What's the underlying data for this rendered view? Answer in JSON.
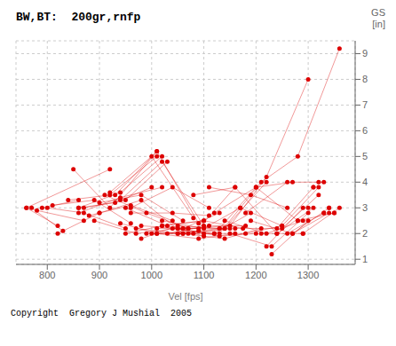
{
  "chart_data": {
    "type": "line",
    "title": "BW,BT:  200gr,rnfp",
    "xlabel": "Vel [fps]",
    "ylabel": "GS\n[in]",
    "annotations": [
      "Copyright  Gregory J Mushial  2005"
    ],
    "xlim": [
      740,
      1390
    ],
    "ylim": [
      0.8,
      9.5
    ],
    "xticks": [
      800,
      900,
      1000,
      1100,
      1200,
      1300
    ],
    "yticks": [
      1,
      2,
      3,
      4,
      5,
      6,
      7,
      8,
      9
    ],
    "grid": true,
    "color": "#dd0000",
    "series": [
      {
        "x": [
          760,
          820
        ],
        "values": [
          3.0,
          2.3
        ]
      },
      {
        "x": [
          760,
          920
        ],
        "values": [
          3.0,
          4.5
        ]
      },
      {
        "x": [
          770,
          830
        ],
        "values": [
          3.0,
          2.1
        ]
      },
      {
        "x": [
          780,
          870
        ],
        "values": [
          2.9,
          2.5
        ]
      },
      {
        "x": [
          790,
          860
        ],
        "values": [
          3.0,
          3.3
        ]
      },
      {
        "x": [
          800,
          870,
          950
        ],
        "values": [
          3.0,
          2.8,
          2.2
        ]
      },
      {
        "x": [
          810,
          890,
          960
        ],
        "values": [
          3.1,
          3.3,
          2.4
        ]
      },
      {
        "x": [
          820,
          900
        ],
        "values": [
          2.0,
          2.8
        ]
      },
      {
        "x": [
          840,
          920,
          1010
        ],
        "values": [
          3.3,
          3.5,
          5.0
        ]
      },
      {
        "x": [
          850,
          920,
          1010
        ],
        "values": [
          4.5,
          3.0,
          5.2
        ]
      },
      {
        "x": [
          860,
          940,
          1020
        ],
        "values": [
          2.8,
          3.4,
          3.8
        ]
      },
      {
        "x": [
          860,
          930,
          1000
        ],
        "values": [
          3.0,
          3.2,
          3.8
        ]
      },
      {
        "x": [
          860,
          940,
          1020
        ],
        "values": [
          3.0,
          3.6,
          5.0
        ]
      },
      {
        "x": [
          870,
          950,
          1030
        ],
        "values": [
          3.0,
          3.3,
          4.8
        ]
      },
      {
        "x": [
          880,
          960,
          1040
        ],
        "values": [
          2.7,
          3.1,
          2.5
        ]
      },
      {
        "x": [
          890,
          970,
          1050
        ],
        "values": [
          2.5,
          2.0,
          2.2
        ]
      },
      {
        "x": [
          900,
          980,
          1060
        ],
        "values": [
          3.2,
          3.5,
          2.5
        ]
      },
      {
        "x": [
          900,
          980,
          1060
        ],
        "values": [
          2.8,
          3.3,
          2.0
        ]
      },
      {
        "x": [
          910,
          990,
          1070
        ],
        "values": [
          3.5,
          2.8,
          2.2
        ]
      },
      {
        "x": [
          920,
          1000,
          1080
        ],
        "values": [
          3.6,
          5.0,
          2.6
        ]
      },
      {
        "x": [
          930,
          1010,
          1090
        ],
        "values": [
          3.5,
          5.2,
          2.4
        ]
      },
      {
        "x": [
          940,
          1020,
          1100
        ],
        "values": [
          3.3,
          4.8,
          2.3
        ]
      },
      {
        "x": [
          940,
          1010,
          1090
        ],
        "values": [
          2.4,
          2.0,
          2.1
        ]
      },
      {
        "x": [
          950,
          1030,
          1100
        ],
        "values": [
          3.0,
          2.3,
          1.9
        ]
      },
      {
        "x": [
          950,
          1020,
          1100
        ],
        "values": [
          2.0,
          2.3,
          2.5
        ]
      },
      {
        "x": [
          960,
          1040,
          1110
        ],
        "values": [
          2.8,
          2.8,
          2.7
        ]
      },
      {
        "x": [
          960,
          1040,
          1110
        ],
        "values": [
          3.0,
          3.8,
          3.0
        ]
      },
      {
        "x": [
          970,
          1050,
          1120
        ],
        "values": [
          2.2,
          2.0,
          2.0
        ]
      },
      {
        "x": [
          980,
          1050,
          1130
        ],
        "values": [
          1.8,
          2.3,
          2.2
        ]
      },
      {
        "x": [
          980,
          1060,
          1130
        ],
        "values": [
          2.3,
          2.2,
          2.8
        ]
      },
      {
        "x": [
          990,
          1070,
          1140
        ],
        "values": [
          2.0,
          2.0,
          2.2
        ]
      },
      {
        "x": [
          1000,
          1080,
          1150
        ],
        "values": [
          2.0,
          2.0,
          2.2
        ]
      },
      {
        "x": [
          1010,
          1090,
          1160
        ],
        "values": [
          2.2,
          2.2,
          3.8
        ]
      },
      {
        "x": [
          1010,
          1090,
          1160
        ],
        "values": [
          2.0,
          1.8,
          2.0
        ]
      },
      {
        "x": [
          1020,
          1100,
          1170
        ],
        "values": [
          2.5,
          2.2,
          3.0
        ]
      },
      {
        "x": [
          1020,
          1100,
          1175
        ],
        "values": [
          2.3,
          2.5,
          2.2
        ]
      },
      {
        "x": [
          1030,
          1110,
          1180
        ],
        "values": [
          2.0,
          2.3,
          2.3
        ]
      },
      {
        "x": [
          1040,
          1120,
          1190
        ],
        "values": [
          2.2,
          2.0,
          2.8
        ]
      },
      {
        "x": [
          1050,
          1130,
          1200
        ],
        "values": [
          2.0,
          2.2,
          3.8
        ]
      },
      {
        "x": [
          1050,
          1130,
          1200
        ],
        "values": [
          2.2,
          1.9,
          2.0
        ]
      },
      {
        "x": [
          1060,
          1140,
          1210
        ],
        "values": [
          2.0,
          1.8,
          2.2
        ]
      },
      {
        "x": [
          1060,
          1140,
          1220
        ],
        "values": [
          2.2,
          2.2,
          4.0
        ]
      },
      {
        "x": [
          1070,
          1150,
          1220,
          1300
        ],
        "values": [
          2.2,
          2.3,
          4.2,
          8.0
        ]
      },
      {
        "x": [
          1080,
          1160,
          1240
        ],
        "values": [
          3.5,
          3.8,
          2.0
        ]
      },
      {
        "x": [
          1100,
          1180,
          1250
        ],
        "values": [
          2.0,
          2.0,
          2.3
        ]
      },
      {
        "x": [
          1110,
          1190,
          1260
        ],
        "values": [
          3.8,
          3.5,
          3.0
        ]
      },
      {
        "x": [
          1120,
          1200,
          1270
        ],
        "values": [
          2.8,
          3.8,
          4.0
        ]
      },
      {
        "x": [
          1130,
          1210,
          1280,
          1360
        ],
        "values": [
          2.0,
          4.0,
          5.0,
          9.2
        ]
      },
      {
        "x": [
          1140,
          1220,
          1290
        ],
        "values": [
          2.5,
          2.0,
          2.5
        ]
      },
      {
        "x": [
          1150,
          1230,
          1300
        ],
        "values": [
          2.0,
          1.5,
          2.8
        ]
      },
      {
        "x": [
          1160,
          1240,
          1310
        ],
        "values": [
          2.2,
          2.2,
          3.8
        ]
      },
      {
        "x": [
          1170,
          1250,
          1320
        ],
        "values": [
          3.0,
          2.3,
          3.8
        ]
      },
      {
        "x": [
          1180,
          1260,
          1330
        ],
        "values": [
          2.8,
          4.0,
          4.0
        ]
      },
      {
        "x": [
          1190,
          1270,
          1340
        ],
        "values": [
          2.5,
          2.0,
          2.8
        ]
      },
      {
        "x": [
          1200,
          1280,
          1350
        ],
        "values": [
          3.8,
          2.5,
          2.8
        ]
      },
      {
        "x": [
          1210,
          1290,
          1360
        ],
        "values": [
          2.0,
          2.0,
          3.0
        ]
      },
      {
        "x": [
          1220,
          1290
        ],
        "values": [
          1.5,
          3.0
        ]
      },
      {
        "x": [
          1230,
          1300
        ],
        "values": [
          1.2,
          2.5
        ]
      },
      {
        "x": [
          1240,
          1310
        ],
        "values": [
          2.0,
          3.0
        ]
      },
      {
        "x": [
          1250,
          1320
        ],
        "values": [
          2.2,
          3.5
        ]
      },
      {
        "x": [
          1260,
          1330
        ],
        "values": [
          2.0,
          2.8
        ]
      },
      {
        "x": [
          1270,
          1340
        ],
        "values": [
          2.0,
          3.0
        ]
      },
      {
        "x": [
          1280
        ],
        "values": [
          2.5
        ]
      },
      {
        "x": [
          1290
        ],
        "values": [
          2.0
        ]
      },
      {
        "x": [
          1300
        ],
        "values": [
          3.0
        ]
      },
      {
        "x": [
          1310
        ],
        "values": [
          3.8
        ]
      },
      {
        "x": [
          1320
        ],
        "values": [
          4.0
        ]
      },
      {
        "x": [
          1330
        ],
        "values": [
          2.8
        ]
      },
      {
        "x": [
          1340
        ],
        "values": [
          3.0
        ]
      },
      {
        "x": [
          1350
        ],
        "values": [
          2.8
        ]
      }
    ]
  }
}
